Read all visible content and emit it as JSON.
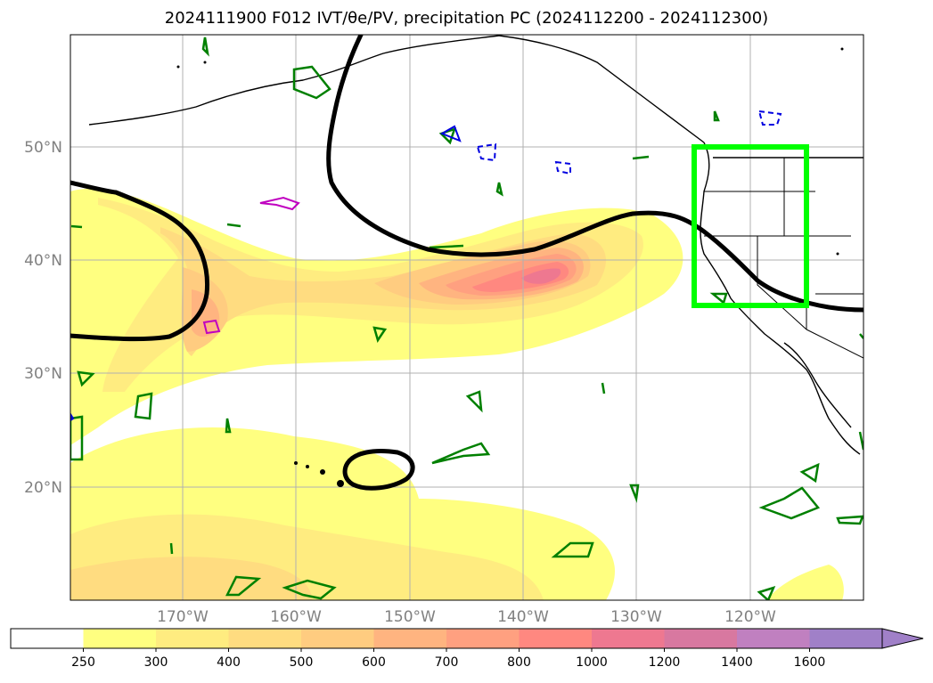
{
  "title": "2024111900 F012 IVT/θe/PV, precipitation PC (2024112200 - 2024112300)",
  "map": {
    "lat_labels": [
      "50°N",
      "40°N",
      "30°N",
      "20°N"
    ],
    "lon_labels": [
      "170°W",
      "160°W",
      "150°W",
      "140°W",
      "130°W",
      "120°W"
    ],
    "box_color": "#00ff00",
    "contour_color": "#000000",
    "pv_color": "#008000"
  },
  "colorbar": {
    "levels": [
      "250",
      "300",
      "400",
      "500",
      "600",
      "700",
      "800",
      "1000",
      "1200",
      "1400",
      "1600"
    ],
    "colors": [
      "#ffffff",
      "#ffff80",
      "#ffec80",
      "#ffdc80",
      "#ffcc80",
      "#ffb480",
      "#ffa080",
      "#ff8880",
      "#ee7890",
      "#d878a0",
      "#c080c0",
      "#a080c8"
    ]
  }
}
